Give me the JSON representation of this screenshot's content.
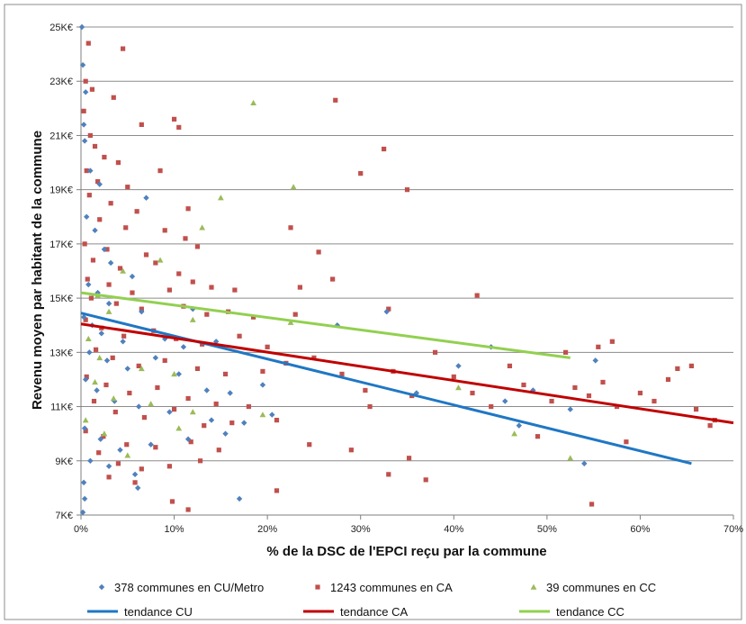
{
  "chart_data": {
    "type": "scatter",
    "xlabel": "% de la DSC de l'EPCI reçu par la commune",
    "ylabel": "Revenu moyen par habitant de la commune",
    "xlim": [
      0,
      70
    ],
    "ylim": [
      7,
      25
    ],
    "x_ticks": [
      0,
      10,
      20,
      30,
      40,
      50,
      60,
      70
    ],
    "x_tick_labels": [
      "0%",
      "10%",
      "20%",
      "30%",
      "40%",
      "50%",
      "60%",
      "70%"
    ],
    "y_ticks": [
      7,
      9,
      11,
      13,
      15,
      17,
      19,
      21,
      23,
      25
    ],
    "y_tick_labels": [
      "7K€",
      "9K€",
      "11K€",
      "13K€",
      "15K€",
      "17K€",
      "19K€",
      "21K€",
      "23K€",
      "25K€"
    ],
    "grid": "horizontal",
    "legend_position": "bottom",
    "series": [
      {
        "name": "378 communes en CU/Metro",
        "marker": "diamond",
        "color": "#4F81BD",
        "points": [
          [
            0.1,
            25.0
          ],
          [
            0.2,
            23.6
          ],
          [
            0.5,
            22.6
          ],
          [
            0.3,
            21.4
          ],
          [
            0.4,
            20.8
          ],
          [
            1.0,
            19.7
          ],
          [
            2.0,
            19.2
          ],
          [
            7.0,
            18.7
          ],
          [
            0.6,
            18.0
          ],
          [
            1.5,
            17.5
          ],
          [
            2.5,
            16.8
          ],
          [
            3.2,
            16.3
          ],
          [
            5.5,
            15.8
          ],
          [
            0.8,
            15.5
          ],
          [
            1.8,
            15.2
          ],
          [
            3.0,
            14.8
          ],
          [
            6.5,
            14.5
          ],
          [
            12.0,
            14.6
          ],
          [
            0.3,
            14.3
          ],
          [
            1.2,
            14.0
          ],
          [
            2.2,
            13.7
          ],
          [
            4.5,
            13.4
          ],
          [
            9.0,
            13.5
          ],
          [
            11.0,
            13.2
          ],
          [
            14.5,
            13.4
          ],
          [
            0.9,
            13.0
          ],
          [
            2.8,
            12.7
          ],
          [
            5.0,
            12.4
          ],
          [
            8.0,
            12.8
          ],
          [
            10.5,
            12.2
          ],
          [
            13.5,
            11.6
          ],
          [
            16.0,
            11.5
          ],
          [
            19.5,
            11.8
          ],
          [
            0.5,
            12.0
          ],
          [
            1.7,
            11.6
          ],
          [
            3.6,
            11.2
          ],
          [
            6.2,
            11.0
          ],
          [
            9.5,
            10.8
          ],
          [
            14.0,
            10.5
          ],
          [
            17.5,
            10.4
          ],
          [
            20.5,
            10.7
          ],
          [
            0.4,
            10.2
          ],
          [
            2.1,
            9.8
          ],
          [
            4.2,
            9.4
          ],
          [
            7.5,
            9.6
          ],
          [
            11.5,
            9.8
          ],
          [
            15.5,
            10.0
          ],
          [
            1.0,
            9.0
          ],
          [
            3.0,
            8.8
          ],
          [
            5.8,
            8.5
          ],
          [
            6.1,
            8.0
          ],
          [
            0.3,
            8.2
          ],
          [
            0.4,
            7.6
          ],
          [
            17.0,
            7.6
          ],
          [
            0.2,
            7.1
          ],
          [
            27.5,
            14.0
          ],
          [
            32.8,
            14.5
          ],
          [
            40.5,
            12.5
          ],
          [
            44.0,
            13.2
          ],
          [
            45.5,
            11.2
          ],
          [
            47.0,
            10.3
          ],
          [
            48.5,
            11.6
          ],
          [
            52.5,
            10.9
          ],
          [
            54.0,
            8.9
          ],
          [
            55.2,
            12.7
          ],
          [
            36.0,
            11.5
          ]
        ]
      },
      {
        "name": "1243 communes en CA",
        "marker": "square",
        "color": "#C0504D",
        "points": [
          [
            0.8,
            24.4
          ],
          [
            4.5,
            24.2
          ],
          [
            0.5,
            23.0
          ],
          [
            1.2,
            22.7
          ],
          [
            3.5,
            22.4
          ],
          [
            0.3,
            21.9
          ],
          [
            1.0,
            21.0
          ],
          [
            6.5,
            21.4
          ],
          [
            10.0,
            21.6
          ],
          [
            10.5,
            21.3
          ],
          [
            1.5,
            20.6
          ],
          [
            2.5,
            20.2
          ],
          [
            4.0,
            20.0
          ],
          [
            0.6,
            19.7
          ],
          [
            8.5,
            19.7
          ],
          [
            1.8,
            19.3
          ],
          [
            5.0,
            19.1
          ],
          [
            0.9,
            18.8
          ],
          [
            3.2,
            18.5
          ],
          [
            6.0,
            18.2
          ],
          [
            11.5,
            18.3
          ],
          [
            2.0,
            17.9
          ],
          [
            4.8,
            17.6
          ],
          [
            9.0,
            17.5
          ],
          [
            11.2,
            17.2
          ],
          [
            0.4,
            17.0
          ],
          [
            2.8,
            16.8
          ],
          [
            7.0,
            16.6
          ],
          [
            12.5,
            16.9
          ],
          [
            1.3,
            16.4
          ],
          [
            4.2,
            16.1
          ],
          [
            8.0,
            16.3
          ],
          [
            10.5,
            15.9
          ],
          [
            0.7,
            15.7
          ],
          [
            3.0,
            15.5
          ],
          [
            5.5,
            15.2
          ],
          [
            9.5,
            15.3
          ],
          [
            12.0,
            15.6
          ],
          [
            14.0,
            15.4
          ],
          [
            16.5,
            15.3
          ],
          [
            1.1,
            15.0
          ],
          [
            3.8,
            14.8
          ],
          [
            6.5,
            14.6
          ],
          [
            11.0,
            14.7
          ],
          [
            13.5,
            14.4
          ],
          [
            15.8,
            14.5
          ],
          [
            18.5,
            14.3
          ],
          [
            0.5,
            14.2
          ],
          [
            2.2,
            13.9
          ],
          [
            4.6,
            13.6
          ],
          [
            7.8,
            13.8
          ],
          [
            10.2,
            13.5
          ],
          [
            13.0,
            13.3
          ],
          [
            17.0,
            13.6
          ],
          [
            20.0,
            13.2
          ],
          [
            23.0,
            14.4
          ],
          [
            1.6,
            13.1
          ],
          [
            3.4,
            12.8
          ],
          [
            6.2,
            12.5
          ],
          [
            9.0,
            12.7
          ],
          [
            12.5,
            12.4
          ],
          [
            15.5,
            12.2
          ],
          [
            19.5,
            12.3
          ],
          [
            22.0,
            12.6
          ],
          [
            0.6,
            12.1
          ],
          [
            2.7,
            11.8
          ],
          [
            5.2,
            11.5
          ],
          [
            8.2,
            11.7
          ],
          [
            11.5,
            11.3
          ],
          [
            14.5,
            11.1
          ],
          [
            18.0,
            11.0
          ],
          [
            21.0,
            10.5
          ],
          [
            1.4,
            11.2
          ],
          [
            3.7,
            10.8
          ],
          [
            6.8,
            10.6
          ],
          [
            10.0,
            10.9
          ],
          [
            13.2,
            10.3
          ],
          [
            16.2,
            10.4
          ],
          [
            0.5,
            10.1
          ],
          [
            2.4,
            9.9
          ],
          [
            4.9,
            9.6
          ],
          [
            8.0,
            9.5
          ],
          [
            11.8,
            9.7
          ],
          [
            14.8,
            9.4
          ],
          [
            24.5,
            9.6
          ],
          [
            29.0,
            9.4
          ],
          [
            1.9,
            9.3
          ],
          [
            4.0,
            8.9
          ],
          [
            6.5,
            8.7
          ],
          [
            9.5,
            8.8
          ],
          [
            12.8,
            9.0
          ],
          [
            3.0,
            8.4
          ],
          [
            5.8,
            8.2
          ],
          [
            9.8,
            7.5
          ],
          [
            11.5,
            7.2
          ],
          [
            21.0,
            7.9
          ],
          [
            22.5,
            17.6
          ],
          [
            25.5,
            16.7
          ],
          [
            27.0,
            15.7
          ],
          [
            27.3,
            22.3
          ],
          [
            30.0,
            19.6
          ],
          [
            32.5,
            20.5
          ],
          [
            35.0,
            19.0
          ],
          [
            33.0,
            14.6
          ],
          [
            42.5,
            15.1
          ],
          [
            23.5,
            15.4
          ],
          [
            25.0,
            12.8
          ],
          [
            28.0,
            12.2
          ],
          [
            30.5,
            11.6
          ],
          [
            31.0,
            11.0
          ],
          [
            33.5,
            12.3
          ],
          [
            35.5,
            11.4
          ],
          [
            38.0,
            13.0
          ],
          [
            40.0,
            12.1
          ],
          [
            42.0,
            11.5
          ],
          [
            44.0,
            11.0
          ],
          [
            46.0,
            12.5
          ],
          [
            47.5,
            11.8
          ],
          [
            49.0,
            9.9
          ],
          [
            50.5,
            11.2
          ],
          [
            52.0,
            13.0
          ],
          [
            53.0,
            11.7
          ],
          [
            54.5,
            11.4
          ],
          [
            56.0,
            11.9
          ],
          [
            57.5,
            11.0
          ],
          [
            58.5,
            9.7
          ],
          [
            60.0,
            11.5
          ],
          [
            61.5,
            11.2
          ],
          [
            63.0,
            12.0
          ],
          [
            64.0,
            12.4
          ],
          [
            65.5,
            12.5
          ],
          [
            66.0,
            10.9
          ],
          [
            67.5,
            10.3
          ],
          [
            68.0,
            10.5
          ],
          [
            55.5,
            13.2
          ],
          [
            57.0,
            13.4
          ],
          [
            54.8,
            7.4
          ],
          [
            33.0,
            8.5
          ],
          [
            35.2,
            9.1
          ],
          [
            37.0,
            8.3
          ]
        ]
      },
      {
        "name": "39 communes en CC",
        "marker": "triangle",
        "color": "#9BBB59",
        "points": [
          [
            18.5,
            22.2
          ],
          [
            22.8,
            19.1
          ],
          [
            15.0,
            18.7
          ],
          [
            13.0,
            17.6
          ],
          [
            8.5,
            16.4
          ],
          [
            4.5,
            16.0
          ],
          [
            1.8,
            15.1
          ],
          [
            3.0,
            14.5
          ],
          [
            12.0,
            14.2
          ],
          [
            22.5,
            14.1
          ],
          [
            0.8,
            13.5
          ],
          [
            2.0,
            12.8
          ],
          [
            6.5,
            12.4
          ],
          [
            10.0,
            12.2
          ],
          [
            1.5,
            11.9
          ],
          [
            3.5,
            11.3
          ],
          [
            7.5,
            11.1
          ],
          [
            12.0,
            10.8
          ],
          [
            19.5,
            10.7
          ],
          [
            40.5,
            11.7
          ],
          [
            46.5,
            10.0
          ],
          [
            52.5,
            9.1
          ],
          [
            0.5,
            10.5
          ],
          [
            2.5,
            10.0
          ],
          [
            5.0,
            9.2
          ],
          [
            10.5,
            10.2
          ]
        ]
      }
    ],
    "trendlines": [
      {
        "name": "tendance CU",
        "color": "#1F77C4",
        "x": [
          0,
          65.5
        ],
        "y": [
          14.45,
          8.9
        ]
      },
      {
        "name": "tendance CA",
        "color": "#C00000",
        "x": [
          0,
          70
        ],
        "y": [
          14.05,
          10.4
        ]
      },
      {
        "name": "tendance CC",
        "color": "#92D050",
        "x": [
          0,
          52.5
        ],
        "y": [
          15.2,
          12.8
        ]
      }
    ]
  }
}
